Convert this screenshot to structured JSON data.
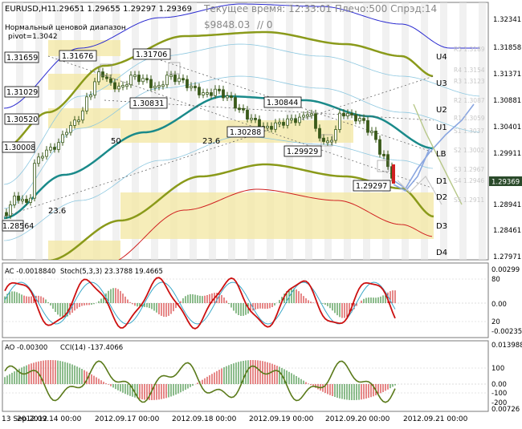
{
  "main": {
    "symbol": "EURUSD,H1",
    "ohlc": "1.29651 1.29655 1.29297 1.29369",
    "info_line1": "Нормальный ценовой диапазон",
    "info_line2": "pivot=1.3042",
    "server_time": "Текущее время: 12:33:01 Плечо:500 Спрэд:14",
    "balance": "$9848.03",
    "balance_suffix": "// 0",
    "price_scale": [
      "1.32341",
      "1.31858",
      "1.31371",
      "1.30881",
      "1.30401",
      "1.29911",
      "1.29369",
      "1.28941",
      "1.28461",
      "1.27971"
    ],
    "current_price": "1.29369",
    "level_labels": [
      "U4",
      "U3",
      "U2",
      "U1",
      "LB",
      "D1",
      "D2",
      "D3",
      "D4"
    ],
    "faint_labels": [
      "R5 1.3189",
      "R4 1.3154",
      "R3 1.3123",
      "R2 1.3087",
      "R1 1.3059",
      "S1 1.3037",
      "S2 1.3002",
      "S3 1.2967",
      "S4 1.2946",
      "S5 1.2911"
    ],
    "boxed_prices": [
      "1.31659",
      "1.31676",
      "1.31706",
      "1.31029",
      "1.30831",
      "1.30844",
      "1.30520",
      "1.30288",
      "1.30008",
      "1.29929",
      "1.29297",
      "1.28564"
    ],
    "plain_labels": [
      "50",
      "23.6",
      "23.6"
    ]
  },
  "ac_panel": {
    "title": "AC -0.0018840",
    "stoch": "Stoch(5,3,3) 23.3788 19.4665",
    "scale": [
      "0.00299",
      "80",
      "0.00",
      "20",
      "-0.00235"
    ]
  },
  "ao_panel": {
    "title": "AO -0.00300",
    "cci": "CCI(14) -137.4066",
    "scale": [
      "0.013988",
      "100",
      "0.00",
      "-100",
      "-200",
      "0.00726"
    ]
  },
  "time_axis": [
    "13 Sep 2012",
    "2012.09.14 00:00",
    "2012.09.17 00:00",
    "2012.09.18 00:00",
    "2012.09.19 00:00",
    "2012.09.20 00:00",
    "2012.09.21 00:00"
  ],
  "colors": {
    "background": "#ffffff",
    "border": "#7a7a7a",
    "yellow_zone": "#f4e9a8",
    "gray_band": "#e6e6e6",
    "candle": "#3a5a1a",
    "olive_ma": "#8a9a1a",
    "teal_ma": "#1a8a8a",
    "blue_line": "#2a2ad0",
    "red_line": "#d02020",
    "ac_red": "#cc1010",
    "ac_green": "#1a7a1a",
    "cci_line": "#5a7a1a"
  }
}
